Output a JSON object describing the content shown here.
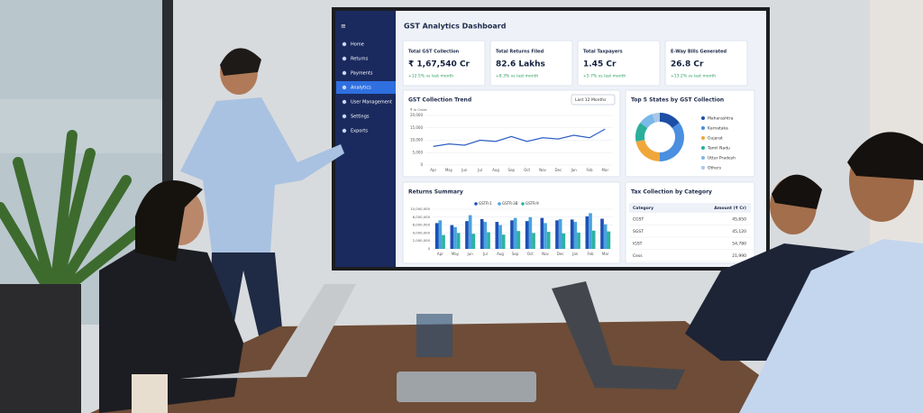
{
  "screen": {
    "sidebar": [
      "Home",
      "Returns",
      "Payments",
      "Analytics",
      "User Management",
      "Settings",
      "Exports"
    ],
    "title": "GST Analytics Dashboard",
    "kpis": [
      {
        "label": "Total GST Collection",
        "value": "₹ 1,67,540 Cr",
        "change": "+12.5% vs last month"
      },
      {
        "label": "Total Returns Filed",
        "value": "82.6 Lakhs",
        "change": "+8.3% vs last month"
      },
      {
        "label": "Total Taxpayers",
        "value": "1.45 Cr",
        "change": "+5.7% vs last month"
      },
      {
        "label": "E-Way Bills Generated",
        "value": "26.8 Cr",
        "change": "+13.2% vs last month"
      }
    ],
    "trend": {
      "title": "GST Collection Trend",
      "period": "Last 12 Months",
      "unit": "₹ in Crore",
      "ylim": [
        0,
        20000
      ],
      "yticks": [
        0,
        {
          "value": 5000,
          "label": "5,000"
        },
        {
          "value": 10000,
          "label": "10,000"
        },
        {
          "value": 15000,
          "label": "15,000"
        },
        {
          "value": 20000,
          "label": "20,000"
        }
      ],
      "categories": [
        "Apr",
        "May",
        "Jun",
        "Jul",
        "Aug",
        "Sep",
        "Oct",
        "Nov",
        "Dec",
        "Jan",
        "Feb",
        "Mar"
      ],
      "values": [
        7500,
        8500,
        8000,
        10000,
        9500,
        11500,
        9500,
        11000,
        10500,
        12000,
        11000,
        14500
      ],
      "color": "#2f5fc4"
    },
    "states": {
      "title": "Top 5 States by GST Collection",
      "names": [
        "Maharashtra",
        "Karnataka",
        "Gujarat",
        "Tamil Nadu",
        "Uttar Pradesh",
        "Others"
      ],
      "values": [
        15,
        35,
        22,
        13,
        10,
        5
      ],
      "colors": [
        "#1d4ea6",
        "#4a8fe0",
        "#f0a73a",
        "#2bae9a",
        "#7ab8e8",
        "#a9c6e8"
      ]
    },
    "returns": {
      "title": "Returns Summary",
      "ylim": [
        0,
        10000000
      ],
      "yticks": [
        0,
        {
          "value": 2000000,
          "label": "2,000,000"
        },
        {
          "value": 4000000,
          "label": "4,000,000"
        },
        {
          "value": 6000000,
          "label": "6,000,000"
        },
        {
          "value": 8000000,
          "label": "8,000,000"
        },
        {
          "value": 10000000,
          "label": "10,000,000"
        }
      ],
      "categories": [
        "Apr",
        "May",
        "Jun",
        "Jul",
        "Aug",
        "Sep",
        "Oct",
        "Nov",
        "Dec",
        "Jan",
        "Feb",
        "Mar"
      ],
      "series": [
        {
          "name": "GSTR-1",
          "color": "#1f4fb5",
          "values": [
            6500000,
            6000000,
            7000000,
            7500000,
            6800000,
            7200000,
            7000000,
            7800000,
            7200000,
            7400000,
            8200000,
            7600000
          ]
        },
        {
          "name": "GSTR-3B",
          "color": "#4aa3df",
          "values": [
            7200000,
            5500000,
            8500000,
            6800000,
            6000000,
            7800000,
            8000000,
            6500000,
            7500000,
            6800000,
            9000000,
            6200000
          ]
        },
        {
          "name": "GSTR-9",
          "color": "#2bb3a0",
          "values": [
            3500000,
            4000000,
            3800000,
            4200000,
            3600000,
            4500000,
            4000000,
            4300000,
            3900000,
            4100000,
            4600000,
            4400000
          ]
        }
      ]
    },
    "tax": {
      "title": "Tax Collection by Category",
      "headers": [
        "Category",
        "Amount (₹ Cr)"
      ],
      "rows": [
        [
          "CGST",
          "45,650"
        ],
        [
          "SGST",
          "45,120"
        ],
        [
          "IGST",
          "54,780"
        ],
        [
          "Cess",
          "21,990"
        ]
      ]
    }
  }
}
